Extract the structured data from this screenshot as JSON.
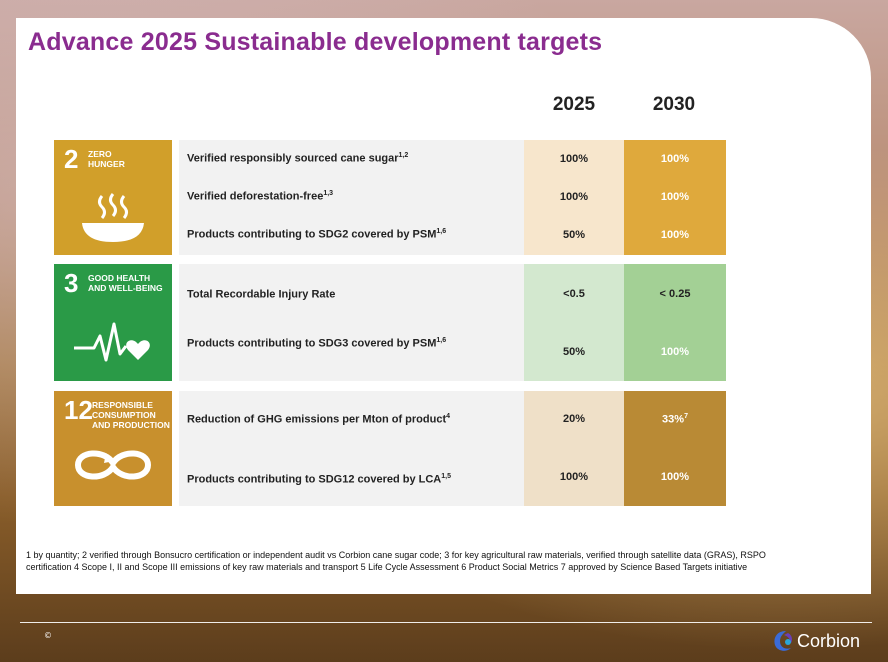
{
  "title": "Advance 2025 Sustainable development targets",
  "years": [
    "2025",
    "2030"
  ],
  "sdgs": [
    {
      "number": "2",
      "name_lines": [
        "ZERO",
        "HUNGER"
      ],
      "icon": "bowl-icon",
      "color": "#d19f2a",
      "rows": [
        {
          "label": "Verified responsibly sourced cane sugar",
          "sup": "1,2",
          "v2025": "100%",
          "v2030": "100%"
        },
        {
          "label": "Verified deforestation-free",
          "sup": "1,3",
          "v2025": "100%",
          "v2030": "100%"
        },
        {
          "label": "Products contributing to SDG2 covered by PSM",
          "sup": "1,6",
          "v2025": "50%",
          "v2030": "100%"
        }
      ]
    },
    {
      "number": "3",
      "name_lines": [
        "GOOD HEALTH",
        "AND WELL-BEING"
      ],
      "icon": "heartbeat-icon",
      "color": "#2a9a47",
      "rows": [
        {
          "label": "Total Recordable Injury Rate",
          "sup": "",
          "v2025": "<0.5",
          "v2030": "< 0.25"
        },
        {
          "label": "Products contributing to SDG3 covered by PSM",
          "sup": "1,6",
          "v2025": "50%",
          "v2030": "100%"
        }
      ]
    },
    {
      "number": "12",
      "name_lines": [
        "RESPONSIBLE",
        "CONSUMPTION",
        "AND PRODUCTION"
      ],
      "icon": "infinity-icon",
      "color": "#c8902d",
      "rows": [
        {
          "label": "Reduction of GHG emissions per Mton of product",
          "sup": "4",
          "v2025": "20%",
          "v2030": "33%",
          "v2030_sup": "7"
        },
        {
          "label": "Products contributing to SDG12 covered by LCA",
          "sup": "1,5",
          "v2025": "100%",
          "v2030": "100%"
        }
      ]
    }
  ],
  "colors": {
    "title": "#8a2c8f",
    "sdg2_col2025": "#f7e6cc",
    "sdg2_col2030": "#dfa93c",
    "sdg3_col2025": "#d3e8cf",
    "sdg3_col2030": "#a3d095",
    "sdg12_col2025": "#efe0c8",
    "sdg12_col2030": "#b98a35"
  },
  "footnote": "1 by quantity; 2 verified through Bonsucro certification or independent audit vs Corbion cane sugar code; 3 for key agricultural raw materials, verified through satellite data (GRAS), RSPO certification 4 Scope I, II and Scope III emissions of key raw materials and transport 5 Life Cycle Assessment 6 Product Social Metrics 7 approved by Science Based Targets initiative",
  "copyright": "©",
  "brand": "Corbion"
}
